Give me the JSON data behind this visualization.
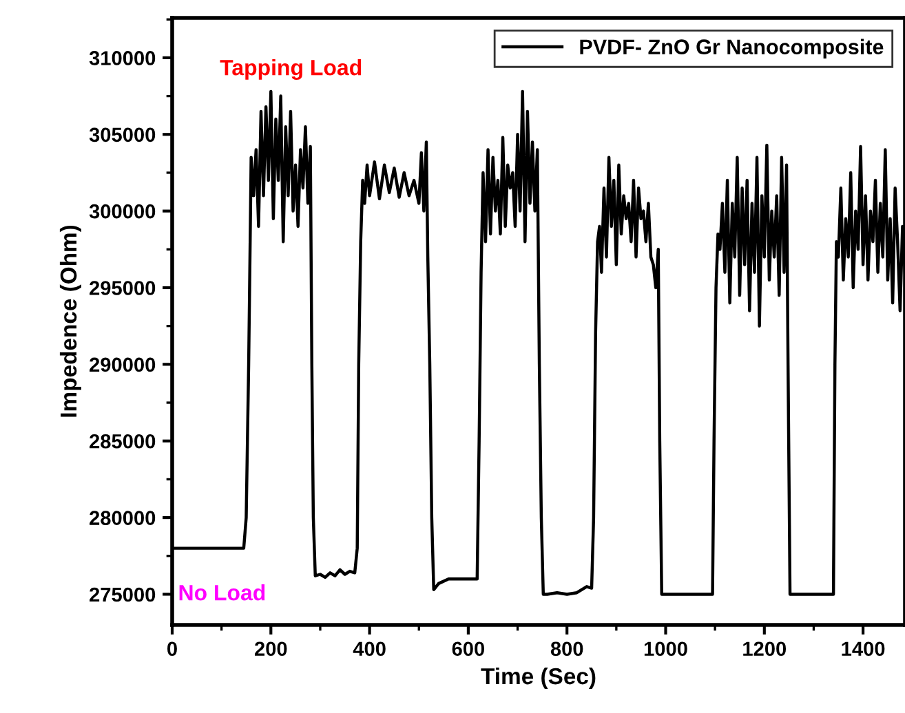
{
  "chart_data": {
    "type": "line",
    "xlabel": "Time (Sec)",
    "ylabel": "Impedence (Ohm)",
    "xlim": [
      0,
      1485
    ],
    "xticks": [
      0,
      200,
      400,
      600,
      800,
      1000,
      1200,
      1400
    ],
    "ylim": [
      273000,
      312600
    ],
    "yticks": [
      275000,
      280000,
      285000,
      290000,
      295000,
      300000,
      305000,
      310000
    ],
    "grid": false,
    "legend": "top right",
    "annotations": [
      "Tapping Load",
      "No Load"
    ],
    "series": [
      {
        "name": "PVDF- ZnO Gr Nanocomposite",
        "color": "#000000",
        "x": [
          0,
          145,
          150,
          155,
          158,
          160,
          165,
          170,
          175,
          180,
          185,
          190,
          195,
          200,
          205,
          210,
          215,
          220,
          225,
          230,
          235,
          240,
          245,
          250,
          255,
          260,
          265,
          270,
          275,
          280,
          283,
          286,
          290,
          300,
          310,
          320,
          330,
          340,
          350,
          360,
          370,
          375,
          378,
          382,
          386,
          390,
          395,
          400,
          410,
          420,
          430,
          440,
          450,
          460,
          470,
          480,
          490,
          500,
          505,
          510,
          515,
          518,
          522,
          526,
          530,
          540,
          560,
          580,
          600,
          618,
          622,
          626,
          630,
          635,
          640,
          645,
          650,
          655,
          660,
          665,
          670,
          675,
          680,
          685,
          690,
          695,
          700,
          705,
          710,
          715,
          720,
          725,
          730,
          735,
          740,
          744,
          748,
          752,
          760,
          780,
          800,
          820,
          840,
          850,
          854,
          858,
          862,
          866,
          870,
          875,
          880,
          885,
          890,
          895,
          900,
          905,
          910,
          915,
          920,
          925,
          930,
          935,
          940,
          945,
          950,
          955,
          960,
          965,
          970,
          975,
          980,
          985,
          988,
          992,
          1095,
          1098,
          1102,
          1106,
          1110,
          1115,
          1120,
          1125,
          1130,
          1135,
          1140,
          1145,
          1150,
          1155,
          1160,
          1165,
          1170,
          1175,
          1180,
          1185,
          1190,
          1195,
          1200,
          1205,
          1210,
          1215,
          1220,
          1225,
          1230,
          1235,
          1240,
          1245,
          1248,
          1252,
          1340,
          1343,
          1346,
          1350,
          1355,
          1360,
          1365,
          1370,
          1375,
          1380,
          1385,
          1390,
          1395,
          1400,
          1405,
          1410,
          1415,
          1420,
          1425,
          1430,
          1435,
          1440,
          1445,
          1450,
          1455,
          1460,
          1465,
          1470,
          1475,
          1480,
          1485
        ],
        "values": [
          278000,
          278000,
          280000,
          290000,
          298000,
          303500,
          301000,
          304000,
          299000,
          306500,
          301000,
          306800,
          302000,
          307800,
          299500,
          306000,
          302000,
          307500,
          298000,
          305500,
          301000,
          306500,
          300000,
          303000,
          299000,
          304000,
          301500,
          305500,
          300500,
          304200,
          290000,
          280000,
          276200,
          276300,
          276100,
          276400,
          276200,
          276600,
          276300,
          276500,
          276400,
          278000,
          290000,
          298000,
          302000,
          300500,
          303000,
          301000,
          303200,
          300800,
          303000,
          301200,
          302800,
          300900,
          302500,
          301000,
          302000,
          300500,
          303800,
          300000,
          304500,
          297000,
          290000,
          280000,
          275300,
          275700,
          276000,
          276000,
          276000,
          276000,
          285000,
          296000,
          302500,
          298000,
          304000,
          298500,
          303500,
          300000,
          302000,
          298500,
          304800,
          299000,
          303000,
          301500,
          302500,
          299000,
          305000,
          300000,
          307800,
          298000,
          306500,
          300500,
          304500,
          300000,
          304000,
          290000,
          280000,
          275000,
          275000,
          275100,
          275000,
          275100,
          275500,
          275400,
          280000,
          292000,
          298000,
          299000,
          296000,
          301500,
          297000,
          303500,
          299000,
          302000,
          296500,
          303000,
          298500,
          301000,
          299500,
          300500,
          298000,
          302000,
          297000,
          301500,
          299500,
          300000,
          298000,
          300500,
          297000,
          296500,
          295000,
          297500,
          285000,
          275000,
          275000,
          285000,
          295000,
          298500,
          297500,
          300500,
          296000,
          302000,
          294000,
          300500,
          297000,
          303500,
          294500,
          301500,
          296500,
          302000,
          293500,
          300500,
          296000,
          303500,
          292500,
          301000,
          297000,
          304300,
          295500,
          300000,
          297000,
          301000,
          294500,
          303500,
          296000,
          303000,
          290000,
          275000,
          275000,
          290000,
          298000,
          297000,
          301500,
          295500,
          299500,
          297000,
          302500,
          295000,
          300000,
          297500,
          304200,
          296500,
          301000,
          295500,
          300000,
          298000,
          302000,
          296000,
          300500,
          297000,
          304000,
          295500,
          299500,
          294000,
          301500,
          298000,
          293500,
          299000,
          296000
        ]
      }
    ]
  }
}
